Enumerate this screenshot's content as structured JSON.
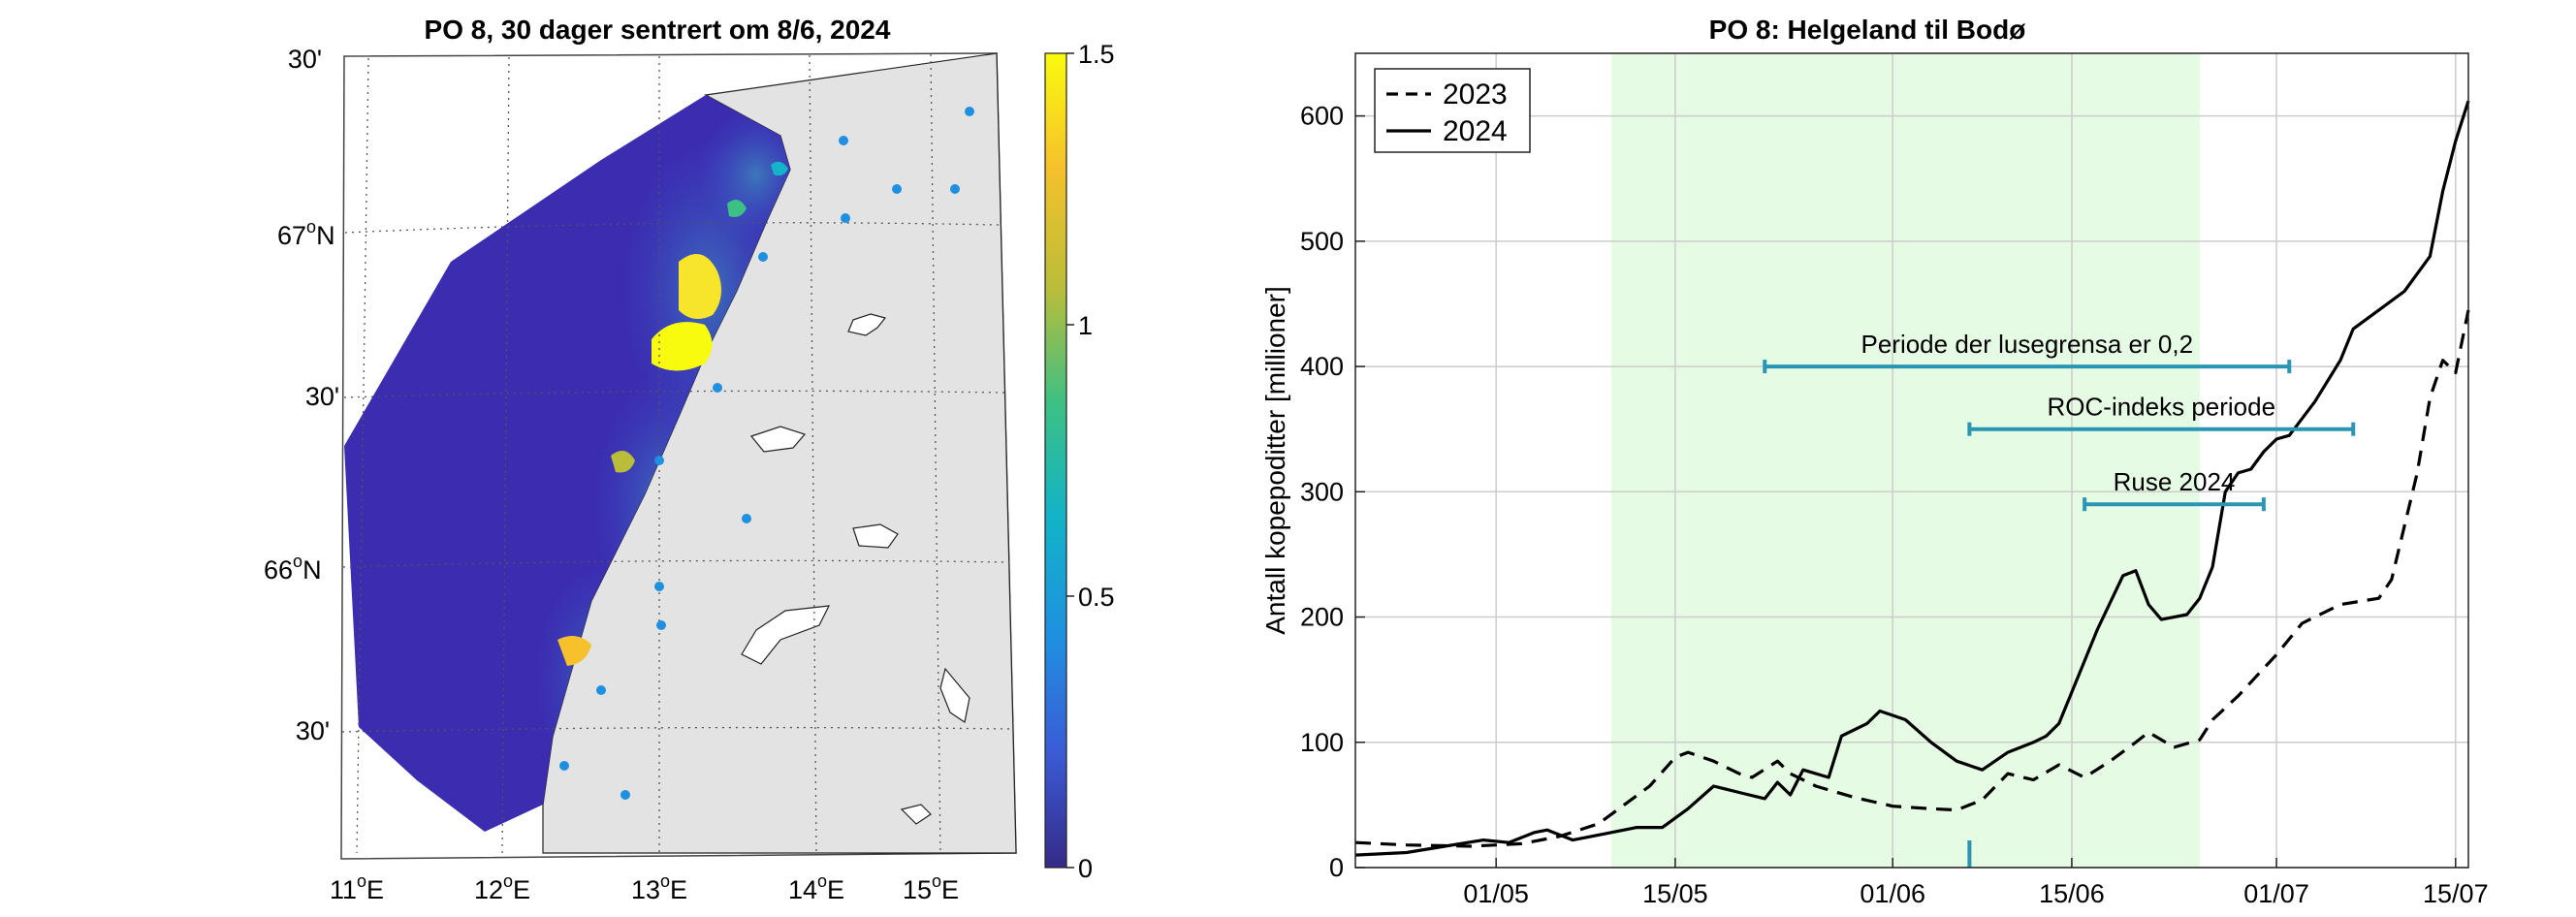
{
  "colors": {
    "highlight": "#e6fbe3",
    "bar": "#2a96b3",
    "land": "#e3e3e3",
    "ocean_low": "#3b2cb0",
    "cb": [
      "#352a87",
      "#3b5bd6",
      "#1f8fe0",
      "#13b3c8",
      "#3cc084",
      "#b9bd3a",
      "#f6c12b",
      "#f9fb0e"
    ]
  },
  "map": {
    "title": "PO 8, 30 dager sentrert om 8/6, 2024",
    "lat_labels": {
      "tl30": "30'",
      "n67": "67",
      "n67_suffix": "N",
      "m30": "30'",
      "n66": "66",
      "n66_suffix": "N",
      "bl30": "30'"
    },
    "lon_labels": [
      {
        "deg": "11",
        "suf": "E"
      },
      {
        "deg": "12",
        "suf": "E"
      },
      {
        "deg": "13",
        "suf": "E"
      },
      {
        "deg": "14",
        "suf": "E"
      },
      {
        "deg": "15",
        "suf": "E"
      }
    ],
    "deg_sign": "o",
    "colorbar": {
      "ticks": [
        "1.5",
        "1",
        "0.5",
        "0"
      ],
      "range": [
        0,
        1.5
      ]
    }
  },
  "chart_data": {
    "type": "line",
    "title": "PO 8: Helgeland til Bodø",
    "ylabel": "Antall kopepoditter [millioner]",
    "xlabel": "",
    "x_unit": "day of year 2024",
    "xlim": [
      111,
      198
    ],
    "ylim": [
      0,
      650
    ],
    "xticks": [
      {
        "doy": 122,
        "label": "01/05"
      },
      {
        "doy": 136,
        "label": "15/05"
      },
      {
        "doy": 153,
        "label": "01/06"
      },
      {
        "doy": 167,
        "label": "15/06"
      },
      {
        "doy": 183,
        "label": "01/07"
      },
      {
        "doy": 197,
        "label": "15/07"
      }
    ],
    "yticks": [
      {
        "v": 0,
        "label": "0"
      },
      {
        "v": 100,
        "label": "100"
      },
      {
        "v": 200,
        "label": "200"
      },
      {
        "v": 300,
        "label": "300"
      },
      {
        "v": 400,
        "label": "400"
      },
      {
        "v": 500,
        "label": "500"
      },
      {
        "v": 600,
        "label": "600"
      }
    ],
    "grid": true,
    "legend_position": "top-left",
    "highlight_period": {
      "start": 131,
      "end": 177
    },
    "marker_doy": 159,
    "annotations": [
      {
        "label": "Periode der lusegrensa er 0,2",
        "start": 143,
        "end": 184,
        "y": 400
      },
      {
        "label": "ROC-indeks periode",
        "start": 159,
        "end": 189,
        "y": 350
      },
      {
        "label": "Ruse 2024",
        "start": 168,
        "end": 182,
        "y": 290
      }
    ],
    "series": [
      {
        "name": "2023",
        "style": "dashed",
        "points": [
          [
            111,
            20
          ],
          [
            115,
            18
          ],
          [
            120,
            17
          ],
          [
            124,
            19
          ],
          [
            127,
            25
          ],
          [
            130,
            35
          ],
          [
            132,
            50
          ],
          [
            134,
            65
          ],
          [
            136,
            88
          ],
          [
            137,
            92
          ],
          [
            139,
            85
          ],
          [
            141,
            75
          ],
          [
            142,
            72
          ],
          [
            144,
            85
          ],
          [
            145,
            75
          ],
          [
            147,
            65
          ],
          [
            150,
            56
          ],
          [
            153,
            49
          ],
          [
            156,
            47
          ],
          [
            158,
            46
          ],
          [
            160,
            54
          ],
          [
            162,
            75
          ],
          [
            164,
            70
          ],
          [
            166,
            82
          ],
          [
            168,
            72
          ],
          [
            170,
            85
          ],
          [
            172,
            100
          ],
          [
            173,
            108
          ],
          [
            175,
            96
          ],
          [
            177,
            102
          ],
          [
            178,
            118
          ],
          [
            180,
            137
          ],
          [
            183,
            170
          ],
          [
            185,
            195
          ],
          [
            188,
            210
          ],
          [
            191,
            215
          ],
          [
            192,
            230
          ],
          [
            194,
            315
          ],
          [
            195,
            375
          ],
          [
            196,
            405
          ],
          [
            197,
            395
          ],
          [
            198,
            445
          ]
        ]
      },
      {
        "name": "2024",
        "style": "solid",
        "points": [
          [
            111,
            10
          ],
          [
            115,
            12
          ],
          [
            118,
            17
          ],
          [
            121,
            22
          ],
          [
            123,
            20
          ],
          [
            125,
            28
          ],
          [
            126,
            30
          ],
          [
            128,
            22
          ],
          [
            130,
            26
          ],
          [
            133,
            32
          ],
          [
            135,
            32
          ],
          [
            137,
            47
          ],
          [
            139,
            65
          ],
          [
            141,
            60
          ],
          [
            143,
            55
          ],
          [
            144,
            68
          ],
          [
            145,
            58
          ],
          [
            146,
            78
          ],
          [
            148,
            72
          ],
          [
            149,
            105
          ],
          [
            151,
            115
          ],
          [
            152,
            125
          ],
          [
            154,
            118
          ],
          [
            156,
            100
          ],
          [
            158,
            85
          ],
          [
            160,
            78
          ],
          [
            162,
            92
          ],
          [
            164,
            100
          ],
          [
            165,
            105
          ],
          [
            166,
            115
          ],
          [
            167,
            140
          ],
          [
            169,
            190
          ],
          [
            171,
            233
          ],
          [
            172,
            237
          ],
          [
            173,
            210
          ],
          [
            174,
            198
          ],
          [
            176,
            202
          ],
          [
            177,
            215
          ],
          [
            178,
            240
          ],
          [
            179,
            300
          ],
          [
            180,
            315
          ],
          [
            181,
            318
          ],
          [
            182,
            332
          ],
          [
            183,
            342
          ],
          [
            184,
            345
          ],
          [
            186,
            372
          ],
          [
            188,
            405
          ],
          [
            189,
            430
          ],
          [
            191,
            445
          ],
          [
            193,
            460
          ],
          [
            195,
            488
          ],
          [
            196,
            540
          ],
          [
            197,
            580
          ],
          [
            198,
            612
          ]
        ]
      }
    ]
  }
}
